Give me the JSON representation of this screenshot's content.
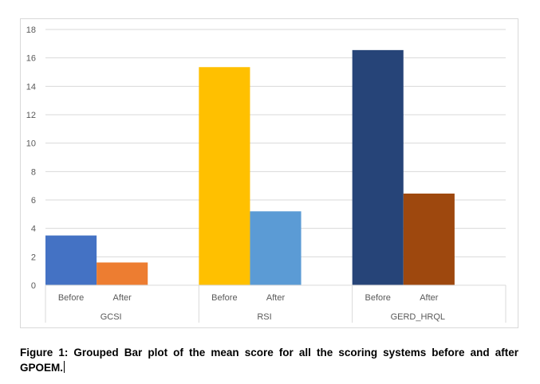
{
  "chart_data": {
    "type": "bar",
    "groups": [
      "GCSI",
      "RSI",
      "GERD_HRQL"
    ],
    "bars_per_group": [
      "Before",
      "After"
    ],
    "values": [
      [
        3.5,
        1.6
      ],
      [
        15.35,
        5.2
      ],
      [
        16.55,
        6.45
      ]
    ],
    "colors": [
      [
        "#4472c4",
        "#ed7d31"
      ],
      [
        "#ffc000",
        "#5b9bd5"
      ],
      [
        "#264478",
        "#9e480e"
      ]
    ],
    "ylim": [
      0,
      18
    ],
    "yticks": [
      0,
      2,
      4,
      6,
      8,
      10,
      12,
      14,
      16,
      18
    ],
    "grid": true,
    "legend": "none"
  },
  "caption": "Figure 1: Grouped Bar plot of the mean score for all the scoring systems before and after GPOEM."
}
